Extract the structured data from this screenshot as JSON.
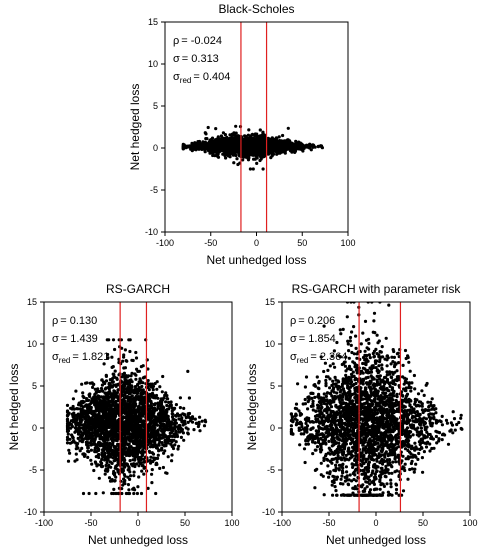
{
  "chart_data": [
    {
      "type": "scatter",
      "title": "Black-Scholes",
      "xlabel": "Net unhedged loss",
      "ylabel": "Net hedged loss",
      "xlim": [
        -100,
        100
      ],
      "ylim": [
        -10,
        15
      ],
      "xticks": [
        -100,
        -50,
        0,
        50,
        100
      ],
      "yticks": [
        -10,
        -5,
        0,
        5,
        10,
        15
      ],
      "stats": [
        {
          "label": "ρ",
          "sub": "",
          "value": "= -0.024"
        },
        {
          "label": "σ",
          "sub": "",
          "value": "= 0.313"
        },
        {
          "label": "σ",
          "sub": "red",
          "value": "= 0.404"
        }
      ],
      "vlines": [
        -17,
        11
      ],
      "line_color": "#e02020",
      "point_color": "#000000",
      "cloud": {
        "x_range": [
          -80,
          72
        ],
        "center_y": 0.2,
        "halfwidth_at_peak": 1.1,
        "peak_x": -10,
        "max_y": 2.9,
        "min_y": -2.5
      }
    },
    {
      "type": "scatter",
      "title": "RS-GARCH",
      "xlabel": "Net unhedged loss",
      "ylabel": "Net hedged loss",
      "xlim": [
        -100,
        100
      ],
      "ylim": [
        -10,
        15
      ],
      "xticks": [
        -100,
        -50,
        0,
        50,
        100
      ],
      "yticks": [
        -10,
        -5,
        0,
        5,
        10,
        15
      ],
      "stats": [
        {
          "label": "ρ",
          "sub": "",
          "value": "= 0.130"
        },
        {
          "label": "σ",
          "sub": "",
          "value": "= 1.439"
        },
        {
          "label": "σ",
          "sub": "red",
          "value": "= 1.821"
        }
      ],
      "vlines": [
        -19,
        9
      ],
      "line_color": "#e02020",
      "point_color": "#000000",
      "cloud": {
        "x_range": [
          -75,
          78
        ],
        "center_y": 0.5,
        "halfwidth_at_peak": 6.5,
        "peak_x": -15,
        "max_y": 10.5,
        "min_y": -7.8
      }
    },
    {
      "type": "scatter",
      "title": "RS-GARCH with parameter risk",
      "xlabel": "Net unhedged loss",
      "ylabel": "Net hedged loss",
      "xlim": [
        -100,
        100
      ],
      "ylim": [
        -10,
        15
      ],
      "xticks": [
        -100,
        -50,
        0,
        50,
        100
      ],
      "yticks": [
        -10,
        -5,
        0,
        5,
        10,
        15
      ],
      "stats": [
        {
          "label": "ρ",
          "sub": "",
          "value": "= 0.206"
        },
        {
          "label": "σ",
          "sub": "",
          "value": "= 1.854"
        },
        {
          "label": "σ",
          "sub": "red",
          "value": "= 2.364"
        }
      ],
      "vlines": [
        -18,
        26
      ],
      "line_color": "#e02020",
      "point_color": "#000000",
      "cloud": {
        "x_range": [
          -90,
          92
        ],
        "center_y": 0.6,
        "halfwidth_at_peak": 9.0,
        "peak_x": -8,
        "max_y": 15,
        "min_y": -8.0
      }
    }
  ]
}
